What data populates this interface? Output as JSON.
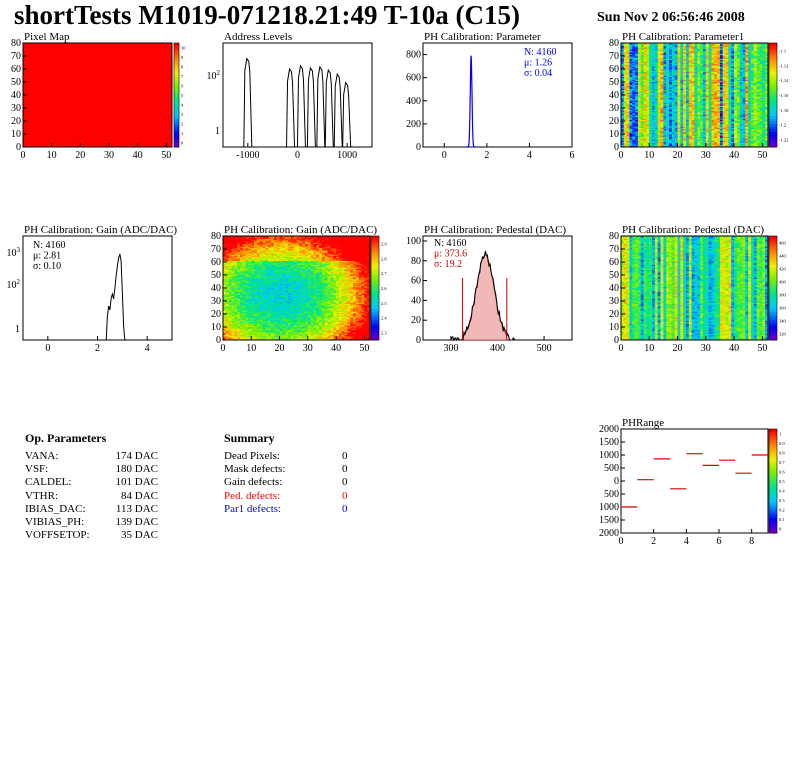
{
  "header": {
    "title": "shortTests M1019-071218.21:49 T-10a (C15)",
    "date": "Sun Nov  2 06:56:46 2008"
  },
  "plots": {
    "pixel_map": {
      "title": "Pixel Map"
    },
    "address_levels": {
      "title": "Address Levels"
    },
    "ph_param": {
      "title": "PH Calibration: Parameter",
      "stats": [
        "N: 4160",
        "μ: 1.26",
        "σ: 0.04"
      ]
    },
    "ph_param1": {
      "title": "PH Calibration: Parameter1"
    },
    "gain_1d": {
      "title": "PH Calibration: Gain (ADC/DAC)",
      "stats": [
        "N: 4160",
        "μ: 2.81",
        "σ: 0.10"
      ]
    },
    "gain_2d": {
      "title": "PH Calibration: Gain (ADC/DAC)"
    },
    "pedestal_1d": {
      "title": "PH Calibration: Pedestal (DAC)",
      "stats": [
        "N: 4160",
        "μ: 373.6",
        "σ: 19.2"
      ]
    },
    "pedestal_2d": {
      "title": "PH Calibration: Pedestal (DAC)"
    },
    "phrange": {
      "title": "PHRange"
    }
  },
  "op_params": {
    "heading": "Op. Parameters",
    "rows": [
      {
        "name": "VANA:",
        "value": "174 DAC"
      },
      {
        "name": "VSF:",
        "value": "180 DAC"
      },
      {
        "name": "CALDEL:",
        "value": "101 DAC"
      },
      {
        "name": "VTHR:",
        "value": "84 DAC"
      },
      {
        "name": "IBIAS_DAC:",
        "value": "113 DAC"
      },
      {
        "name": "VIBIAS_PH:",
        "value": "139 DAC"
      },
      {
        "name": "VOFFSETOP:",
        "value": "35 DAC"
      }
    ]
  },
  "summary": {
    "heading": "Summary",
    "rows": [
      {
        "name": "Dead Pixels:",
        "value": "0",
        "color": "#000000"
      },
      {
        "name": "Mask defects:",
        "value": "0",
        "color": "#000000"
      },
      {
        "name": "Gain defects:",
        "value": "0",
        "color": "#000000"
      },
      {
        "name": "Ped. defects:",
        "value": "0",
        "color": "#ff0000"
      },
      {
        "name": "Par1 defects:",
        "value": "0",
        "color": "#0000ff"
      }
    ]
  },
  "chart_data": [
    {
      "id": "pixel_map",
      "type": "heatmap",
      "title": "Pixel Map",
      "xlim": [
        0,
        52
      ],
      "ylim": [
        0,
        80
      ],
      "xticks": [
        0,
        10,
        20,
        30,
        40,
        50
      ],
      "yticks": [
        0,
        10,
        20,
        30,
        40,
        50,
        60,
        70,
        80
      ],
      "fill": "uniform-red",
      "colorbar_ticks": [
        "10",
        "9",
        "8",
        "7",
        "6",
        "5",
        "4",
        "3",
        "2",
        "1",
        "0"
      ]
    },
    {
      "id": "address_levels",
      "type": "line",
      "title": "Address Levels",
      "xlim": [
        -1500,
        1500
      ],
      "xticks": [
        -1000,
        0,
        1000
      ],
      "yscale": "log",
      "ytick_labels": [
        "10",
        "1"
      ],
      "ytick_sup": [
        "2",
        ""
      ],
      "peaks": [
        {
          "x": -1000,
          "h": 0.85
        },
        {
          "x": -140,
          "h": 0.75
        },
        {
          "x": 80,
          "h": 0.78
        },
        {
          "x": 280,
          "h": 0.76
        },
        {
          "x": 470,
          "h": 0.77
        },
        {
          "x": 640,
          "h": 0.74
        },
        {
          "x": 820,
          "h": 0.7
        },
        {
          "x": 990,
          "h": 0.62
        }
      ]
    },
    {
      "id": "ph_param",
      "type": "line",
      "title": "PH Calibration: Parameter",
      "color": "#0000ff",
      "xlim": [
        -1,
        6
      ],
      "ylim": [
        0,
        900
      ],
      "xticks": [
        0,
        2,
        4,
        6
      ],
      "yticks": [
        0,
        200,
        400,
        600,
        800
      ],
      "mean": 1.26,
      "sigma": 0.04,
      "peak": 790
    },
    {
      "id": "ph_param1",
      "type": "heatmap",
      "title": "PH Calibration: Parameter1",
      "xlim": [
        0,
        52
      ],
      "ylim": [
        0,
        80
      ],
      "xticks": [
        0,
        10,
        20,
        30,
        40,
        50
      ],
      "yticks": [
        0,
        10,
        20,
        30,
        40,
        50,
        60,
        70,
        80
      ],
      "colorbar_ticks": [
        "-1.1",
        "-1.12",
        "-1.14",
        "-1.16",
        "-1.18",
        "-1.2",
        "-1.22"
      ]
    },
    {
      "id": "gain_1d",
      "type": "line",
      "title": "PH Calibration: Gain (ADC/DAC)",
      "xlim": [
        -1,
        5
      ],
      "xticks": [
        0,
        2,
        4
      ],
      "yscale": "log",
      "ytick_labels": [
        "10",
        "10",
        "1"
      ],
      "ytick_sup": [
        "3",
        "2",
        ""
      ],
      "mean": 2.81,
      "sigma": 0.1
    },
    {
      "id": "gain_2d",
      "type": "heatmap",
      "title": "PH Calibration: Gain (ADC/DAC)",
      "xlim": [
        0,
        52
      ],
      "ylim": [
        0,
        80
      ],
      "xticks": [
        0,
        10,
        20,
        30,
        40,
        50
      ],
      "yticks": [
        0,
        10,
        20,
        30,
        40,
        50,
        60,
        70,
        80
      ],
      "colorbar_ticks": [
        "2.9",
        "2.8",
        "2.7",
        "2.6",
        "2.5",
        "2.4",
        "2.3"
      ]
    },
    {
      "id": "pedestal_1d",
      "type": "line",
      "title": "PH Calibration: Pedestal (DAC)",
      "xlim": [
        240,
        560
      ],
      "ylim": [
        0,
        105
      ],
      "xticks": [
        300,
        400,
        500
      ],
      "yticks": [
        0,
        20,
        40,
        60,
        80,
        100
      ],
      "mean": 373.6,
      "sigma": 19.2,
      "peak": 86,
      "cut_lines": [
        325,
        420
      ]
    },
    {
      "id": "pedestal_2d",
      "type": "heatmap",
      "title": "PH Calibration: Pedestal (DAC)",
      "xlim": [
        0,
        52
      ],
      "ylim": [
        0,
        80
      ],
      "xticks": [
        0,
        10,
        20,
        30,
        40,
        50
      ],
      "yticks": [
        0,
        10,
        20,
        30,
        40,
        50,
        60,
        70,
        80
      ],
      "colorbar_ticks": [
        "460",
        "440",
        "420",
        "400",
        "380",
        "360",
        "340",
        "320"
      ]
    },
    {
      "id": "phrange",
      "type": "scatter",
      "title": "PHRange",
      "xlim": [
        0,
        9
      ],
      "ylim": [
        -2000,
        2000
      ],
      "xticks": [
        0,
        2,
        4,
        6,
        8
      ],
      "yticks": [
        2000,
        1500,
        1000,
        500,
        0,
        -500,
        -1000,
        -1500,
        -2000
      ],
      "ytick_labels": [
        "2000",
        "1500",
        "1000",
        "500",
        "0",
        "500",
        "1000",
        "1500",
        "2000"
      ],
      "x": [
        0.5,
        1.5,
        2.5,
        3.5,
        4.5,
        5.5,
        6.5,
        7.5,
        8.5
      ],
      "values": [
        -1000,
        50,
        850,
        -300,
        1050,
        600,
        800,
        300,
        1000
      ],
      "colorbar_ticks": [
        "1",
        "0.9",
        "0.8",
        "0.7",
        "0.6",
        "0.5",
        "0.4",
        "0.3",
        "0.2",
        "0.1",
        "0"
      ]
    }
  ]
}
